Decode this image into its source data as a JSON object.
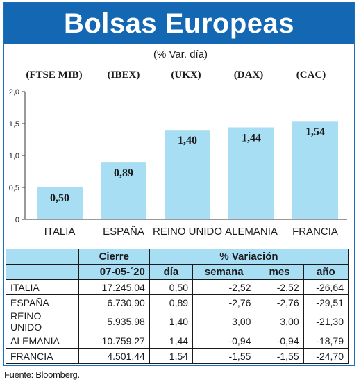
{
  "title": "Bolsas Europeas",
  "subtitle": "(% Var. día)",
  "chart_data": {
    "type": "bar",
    "index_labels": [
      "(FTSE MIB)",
      "(IBEX)",
      "(UKX)",
      "(DAX)",
      "(CAC)"
    ],
    "categories": [
      "ITALIA",
      "ESPAÑA",
      "REINO UNIDO",
      "ALEMANIA",
      "FRANCIA"
    ],
    "values": [
      0.5,
      0.89,
      1.4,
      1.44,
      1.54
    ],
    "value_labels": [
      "0,50",
      "0,89",
      "1,40",
      "1,44",
      "1,54"
    ],
    "y_ticks": [
      0,
      0.5,
      1.0,
      1.5,
      2.0
    ],
    "y_tick_labels": [
      "0",
      "0,5",
      "1,0",
      "1,5",
      "2,0"
    ],
    "ylim": [
      0,
      2.0
    ],
    "bar_color": "#a8def4"
  },
  "table": {
    "header_cierre": "Cierre",
    "header_variacion": "% Variación",
    "header_date": "07-05-´20",
    "header_dia": "día",
    "header_semana": "semana",
    "header_mes": "mes",
    "header_anio": "año",
    "rows": [
      {
        "name": "ITALIA",
        "cierre": "17.245,04",
        "dia": "0,50",
        "semana": "-2,52",
        "mes": "-2,52",
        "anio": "-26,64"
      },
      {
        "name": "ESPAÑA",
        "cierre": "6.730,90",
        "dia": "0,89",
        "semana": "-2,76",
        "mes": "-2,76",
        "anio": "-29,51"
      },
      {
        "name": "REINO UNIDO",
        "cierre": "5.935,98",
        "dia": "1,40",
        "semana": "3,00",
        "mes": "3,00",
        "anio": "-21,30"
      },
      {
        "name": "ALEMANIA",
        "cierre": "10.759,27",
        "dia": "1,44",
        "semana": "-0,94",
        "mes": "-0,94",
        "anio": "-18,79"
      },
      {
        "name": "FRANCIA",
        "cierre": "4.501,44",
        "dia": "1,54",
        "semana": "-1,55",
        "mes": "-1,55",
        "anio": "-24,70"
      }
    ]
  },
  "source": "Fuente: Bloomberg."
}
